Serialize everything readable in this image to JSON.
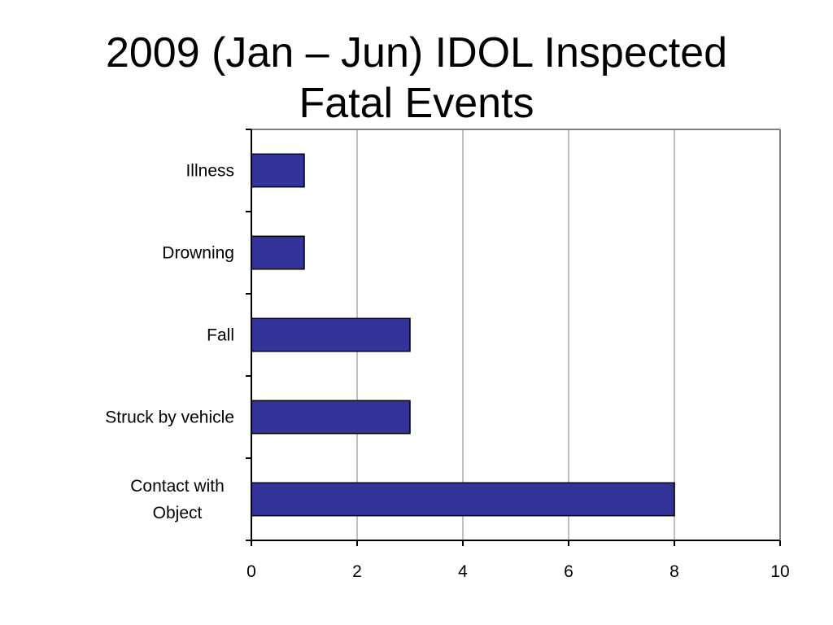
{
  "slide": {
    "title_line1": "2009 (Jan – Jun) IDOL Inspected",
    "title_line2": "Fatal Events"
  },
  "chart_data": {
    "type": "bar",
    "orientation": "horizontal",
    "title": "2009 (Jan – Jun) IDOL Inspected Fatal Events",
    "categories": [
      "Illness",
      "Drowning",
      "Fall",
      "Struck by vehicle",
      "Contact with Object"
    ],
    "category_label_lines": [
      [
        "Illness"
      ],
      [
        "Drowning"
      ],
      [
        "Fall"
      ],
      [
        "Struck by vehicle"
      ],
      [
        "Contact with",
        "Object"
      ]
    ],
    "values": [
      1,
      1,
      3,
      3,
      8
    ],
    "xlabel": "",
    "ylabel": "",
    "xlim": [
      0,
      10
    ],
    "xticks": [
      0,
      2,
      4,
      6,
      8,
      10
    ],
    "grid": "vertical",
    "legend": "none",
    "colors": {
      "bar_fill": "#333399",
      "bar_stroke": "#000000",
      "grid": "#c0c0c0",
      "axis": "#000000",
      "plot_border": "#808080"
    }
  }
}
